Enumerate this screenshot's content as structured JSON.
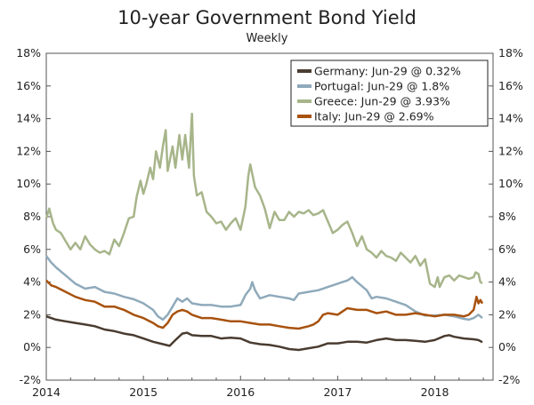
{
  "chart_data": {
    "type": "line",
    "title": "10-year Government Bond Yield",
    "subtitle": "Weekly",
    "xlabel": "",
    "ylabel": "",
    "xlim": [
      2014.0,
      2018.6
    ],
    "ylim": [
      -2,
      18
    ],
    "y_ticks": [
      "-2%",
      "0%",
      "2%",
      "4%",
      "6%",
      "8%",
      "10%",
      "12%",
      "14%",
      "16%",
      "18%"
    ],
    "y_tick_values": [
      -2,
      0,
      2,
      4,
      6,
      8,
      10,
      12,
      14,
      16,
      18
    ],
    "x_ticks": [
      "2014",
      "2015",
      "2016",
      "2017",
      "2018"
    ],
    "x_tick_values": [
      2014,
      2015,
      2016,
      2017,
      2018
    ],
    "grid": false,
    "legend_position": "top-right",
    "series": [
      {
        "name": "Germany: Jun-29 @ 0.32%",
        "color": "#4a3c30",
        "points": [
          [
            2014.0,
            1.9
          ],
          [
            2014.1,
            1.7
          ],
          [
            2014.2,
            1.6
          ],
          [
            2014.3,
            1.5
          ],
          [
            2014.4,
            1.4
          ],
          [
            2014.5,
            1.3
          ],
          [
            2014.6,
            1.1
          ],
          [
            2014.7,
            1.0
          ],
          [
            2014.8,
            0.85
          ],
          [
            2014.9,
            0.75
          ],
          [
            2015.0,
            0.55
          ],
          [
            2015.1,
            0.35
          ],
          [
            2015.2,
            0.2
          ],
          [
            2015.27,
            0.1
          ],
          [
            2015.33,
            0.45
          ],
          [
            2015.4,
            0.85
          ],
          [
            2015.45,
            0.9
          ],
          [
            2015.5,
            0.75
          ],
          [
            2015.6,
            0.7
          ],
          [
            2015.7,
            0.7
          ],
          [
            2015.8,
            0.55
          ],
          [
            2015.9,
            0.6
          ],
          [
            2016.0,
            0.55
          ],
          [
            2016.1,
            0.3
          ],
          [
            2016.2,
            0.2
          ],
          [
            2016.3,
            0.15
          ],
          [
            2016.4,
            0.05
          ],
          [
            2016.5,
            -0.1
          ],
          [
            2016.6,
            -0.15
          ],
          [
            2016.7,
            -0.05
          ],
          [
            2016.8,
            0.05
          ],
          [
            2016.9,
            0.25
          ],
          [
            2017.0,
            0.25
          ],
          [
            2017.1,
            0.35
          ],
          [
            2017.2,
            0.35
          ],
          [
            2017.3,
            0.3
          ],
          [
            2017.4,
            0.45
          ],
          [
            2017.5,
            0.55
          ],
          [
            2017.6,
            0.45
          ],
          [
            2017.7,
            0.45
          ],
          [
            2017.8,
            0.4
          ],
          [
            2017.9,
            0.35
          ],
          [
            2018.0,
            0.45
          ],
          [
            2018.1,
            0.7
          ],
          [
            2018.15,
            0.75
          ],
          [
            2018.2,
            0.65
          ],
          [
            2018.3,
            0.55
          ],
          [
            2018.4,
            0.5
          ],
          [
            2018.45,
            0.45
          ],
          [
            2018.49,
            0.32
          ]
        ]
      },
      {
        "name": "Portugal: Jun-29 @ 1.8%",
        "color": "#8faabb",
        "points": [
          [
            2014.0,
            5.6
          ],
          [
            2014.05,
            5.2
          ],
          [
            2014.1,
            4.9
          ],
          [
            2014.2,
            4.4
          ],
          [
            2014.3,
            3.9
          ],
          [
            2014.4,
            3.6
          ],
          [
            2014.5,
            3.7
          ],
          [
            2014.6,
            3.4
          ],
          [
            2014.7,
            3.3
          ],
          [
            2014.8,
            3.1
          ],
          [
            2014.9,
            2.95
          ],
          [
            2015.0,
            2.7
          ],
          [
            2015.1,
            2.3
          ],
          [
            2015.15,
            1.9
          ],
          [
            2015.2,
            1.7
          ],
          [
            2015.25,
            2.0
          ],
          [
            2015.3,
            2.5
          ],
          [
            2015.35,
            3.0
          ],
          [
            2015.4,
            2.8
          ],
          [
            2015.45,
            3.0
          ],
          [
            2015.5,
            2.7
          ],
          [
            2015.6,
            2.6
          ],
          [
            2015.7,
            2.6
          ],
          [
            2015.8,
            2.5
          ],
          [
            2015.9,
            2.5
          ],
          [
            2016.0,
            2.6
          ],
          [
            2016.05,
            3.2
          ],
          [
            2016.1,
            3.6
          ],
          [
            2016.12,
            4.0
          ],
          [
            2016.15,
            3.5
          ],
          [
            2016.2,
            3.0
          ],
          [
            2016.3,
            3.2
          ],
          [
            2016.4,
            3.1
          ],
          [
            2016.5,
            3.0
          ],
          [
            2016.55,
            2.9
          ],
          [
            2016.6,
            3.3
          ],
          [
            2016.7,
            3.4
          ],
          [
            2016.8,
            3.5
          ],
          [
            2016.9,
            3.7
          ],
          [
            2017.0,
            3.9
          ],
          [
            2017.05,
            4.0
          ],
          [
            2017.1,
            4.1
          ],
          [
            2017.15,
            4.3
          ],
          [
            2017.2,
            4.0
          ],
          [
            2017.3,
            3.5
          ],
          [
            2017.35,
            3.0
          ],
          [
            2017.4,
            3.1
          ],
          [
            2017.5,
            3.0
          ],
          [
            2017.6,
            2.8
          ],
          [
            2017.7,
            2.6
          ],
          [
            2017.75,
            2.4
          ],
          [
            2017.8,
            2.2
          ],
          [
            2017.9,
            1.95
          ],
          [
            2018.0,
            1.95
          ],
          [
            2018.1,
            2.0
          ],
          [
            2018.2,
            1.9
          ],
          [
            2018.3,
            1.75
          ],
          [
            2018.35,
            1.7
          ],
          [
            2018.4,
            1.8
          ],
          [
            2018.45,
            2.0
          ],
          [
            2018.49,
            1.8
          ]
        ]
      },
      {
        "name": "Greece: Jun-29 @ 3.93%",
        "color": "#a7b58a",
        "points": [
          [
            2014.0,
            7.9
          ],
          [
            2014.03,
            8.5
          ],
          [
            2014.07,
            7.6
          ],
          [
            2014.1,
            7.2
          ],
          [
            2014.15,
            7.0
          ],
          [
            2014.2,
            6.5
          ],
          [
            2014.25,
            6.0
          ],
          [
            2014.3,
            6.4
          ],
          [
            2014.35,
            6.0
          ],
          [
            2014.4,
            6.8
          ],
          [
            2014.45,
            6.3
          ],
          [
            2014.5,
            6.0
          ],
          [
            2014.55,
            5.8
          ],
          [
            2014.6,
            5.9
          ],
          [
            2014.65,
            5.7
          ],
          [
            2014.7,
            6.6
          ],
          [
            2014.75,
            6.2
          ],
          [
            2014.8,
            7.0
          ],
          [
            2014.85,
            7.9
          ],
          [
            2014.9,
            8.0
          ],
          [
            2014.93,
            9.2
          ],
          [
            2014.97,
            10.2
          ],
          [
            2015.0,
            9.4
          ],
          [
            2015.03,
            10.0
          ],
          [
            2015.07,
            11.0
          ],
          [
            2015.1,
            10.3
          ],
          [
            2015.13,
            12.0
          ],
          [
            2015.17,
            11.0
          ],
          [
            2015.2,
            12.3
          ],
          [
            2015.23,
            13.3
          ],
          [
            2015.25,
            10.8
          ],
          [
            2015.3,
            12.3
          ],
          [
            2015.33,
            11.0
          ],
          [
            2015.37,
            13.0
          ],
          [
            2015.4,
            11.5
          ],
          [
            2015.43,
            13.0
          ],
          [
            2015.47,
            11.0
          ],
          [
            2015.5,
            14.3
          ],
          [
            2015.52,
            10.5
          ],
          [
            2015.55,
            9.3
          ],
          [
            2015.6,
            9.5
          ],
          [
            2015.65,
            8.3
          ],
          [
            2015.7,
            8.0
          ],
          [
            2015.75,
            7.6
          ],
          [
            2015.8,
            7.7
          ],
          [
            2015.85,
            7.2
          ],
          [
            2015.9,
            7.6
          ],
          [
            2015.95,
            7.9
          ],
          [
            2016.0,
            7.2
          ],
          [
            2016.05,
            8.6
          ],
          [
            2016.08,
            10.5
          ],
          [
            2016.1,
            11.2
          ],
          [
            2016.15,
            9.8
          ],
          [
            2016.2,
            9.3
          ],
          [
            2016.25,
            8.5
          ],
          [
            2016.3,
            7.3
          ],
          [
            2016.35,
            8.3
          ],
          [
            2016.4,
            7.8
          ],
          [
            2016.45,
            7.8
          ],
          [
            2016.5,
            8.3
          ],
          [
            2016.55,
            8.0
          ],
          [
            2016.6,
            8.3
          ],
          [
            2016.65,
            8.2
          ],
          [
            2016.7,
            8.4
          ],
          [
            2016.75,
            8.1
          ],
          [
            2016.8,
            8.2
          ],
          [
            2016.85,
            8.4
          ],
          [
            2016.9,
            7.7
          ],
          [
            2016.95,
            7.0
          ],
          [
            2017.0,
            7.2
          ],
          [
            2017.05,
            7.5
          ],
          [
            2017.1,
            7.7
          ],
          [
            2017.15,
            7.0
          ],
          [
            2017.2,
            6.2
          ],
          [
            2017.25,
            6.8
          ],
          [
            2017.3,
            6.0
          ],
          [
            2017.35,
            5.8
          ],
          [
            2017.4,
            5.5
          ],
          [
            2017.45,
            5.9
          ],
          [
            2017.5,
            5.6
          ],
          [
            2017.55,
            5.5
          ],
          [
            2017.6,
            5.3
          ],
          [
            2017.65,
            5.8
          ],
          [
            2017.7,
            5.5
          ],
          [
            2017.75,
            5.2
          ],
          [
            2017.8,
            5.6
          ],
          [
            2017.85,
            5.0
          ],
          [
            2017.9,
            5.4
          ],
          [
            2017.93,
            4.5
          ],
          [
            2017.95,
            3.9
          ],
          [
            2018.0,
            3.7
          ],
          [
            2018.03,
            4.3
          ],
          [
            2018.05,
            3.7
          ],
          [
            2018.1,
            4.3
          ],
          [
            2018.15,
            4.4
          ],
          [
            2018.2,
            4.1
          ],
          [
            2018.25,
            4.4
          ],
          [
            2018.3,
            4.3
          ],
          [
            2018.35,
            4.2
          ],
          [
            2018.4,
            4.3
          ],
          [
            2018.42,
            4.6
          ],
          [
            2018.45,
            4.5
          ],
          [
            2018.47,
            4.0
          ],
          [
            2018.49,
            3.93
          ]
        ]
      },
      {
        "name": "Italy: Jun-29 @ 2.69%",
        "color": "#a8520e",
        "points": [
          [
            2014.0,
            4.1
          ],
          [
            2014.05,
            3.8
          ],
          [
            2014.1,
            3.7
          ],
          [
            2014.2,
            3.4
          ],
          [
            2014.3,
            3.1
          ],
          [
            2014.4,
            2.9
          ],
          [
            2014.5,
            2.8
          ],
          [
            2014.6,
            2.5
          ],
          [
            2014.7,
            2.5
          ],
          [
            2014.8,
            2.3
          ],
          [
            2014.9,
            2.0
          ],
          [
            2015.0,
            1.8
          ],
          [
            2015.1,
            1.5
          ],
          [
            2015.15,
            1.3
          ],
          [
            2015.2,
            1.2
          ],
          [
            2015.25,
            1.5
          ],
          [
            2015.3,
            2.0
          ],
          [
            2015.35,
            2.2
          ],
          [
            2015.4,
            2.3
          ],
          [
            2015.45,
            2.2
          ],
          [
            2015.5,
            2.0
          ],
          [
            2015.6,
            1.8
          ],
          [
            2015.7,
            1.8
          ],
          [
            2015.8,
            1.7
          ],
          [
            2015.9,
            1.6
          ],
          [
            2016.0,
            1.6
          ],
          [
            2016.1,
            1.5
          ],
          [
            2016.2,
            1.4
          ],
          [
            2016.3,
            1.4
          ],
          [
            2016.4,
            1.3
          ],
          [
            2016.5,
            1.2
          ],
          [
            2016.6,
            1.15
          ],
          [
            2016.7,
            1.3
          ],
          [
            2016.75,
            1.4
          ],
          [
            2016.8,
            1.6
          ],
          [
            2016.85,
            2.0
          ],
          [
            2016.9,
            2.1
          ],
          [
            2017.0,
            2.0
          ],
          [
            2017.05,
            2.2
          ],
          [
            2017.1,
            2.4
          ],
          [
            2017.2,
            2.3
          ],
          [
            2017.3,
            2.3
          ],
          [
            2017.4,
            2.1
          ],
          [
            2017.5,
            2.2
          ],
          [
            2017.6,
            2.0
          ],
          [
            2017.7,
            2.0
          ],
          [
            2017.8,
            2.1
          ],
          [
            2017.9,
            2.0
          ],
          [
            2018.0,
            1.9
          ],
          [
            2018.1,
            2.0
          ],
          [
            2018.2,
            2.0
          ],
          [
            2018.3,
            1.9
          ],
          [
            2018.35,
            2.0
          ],
          [
            2018.4,
            2.3
          ],
          [
            2018.43,
            3.1
          ],
          [
            2018.45,
            2.7
          ],
          [
            2018.47,
            2.9
          ],
          [
            2018.49,
            2.69
          ]
        ]
      }
    ]
  }
}
